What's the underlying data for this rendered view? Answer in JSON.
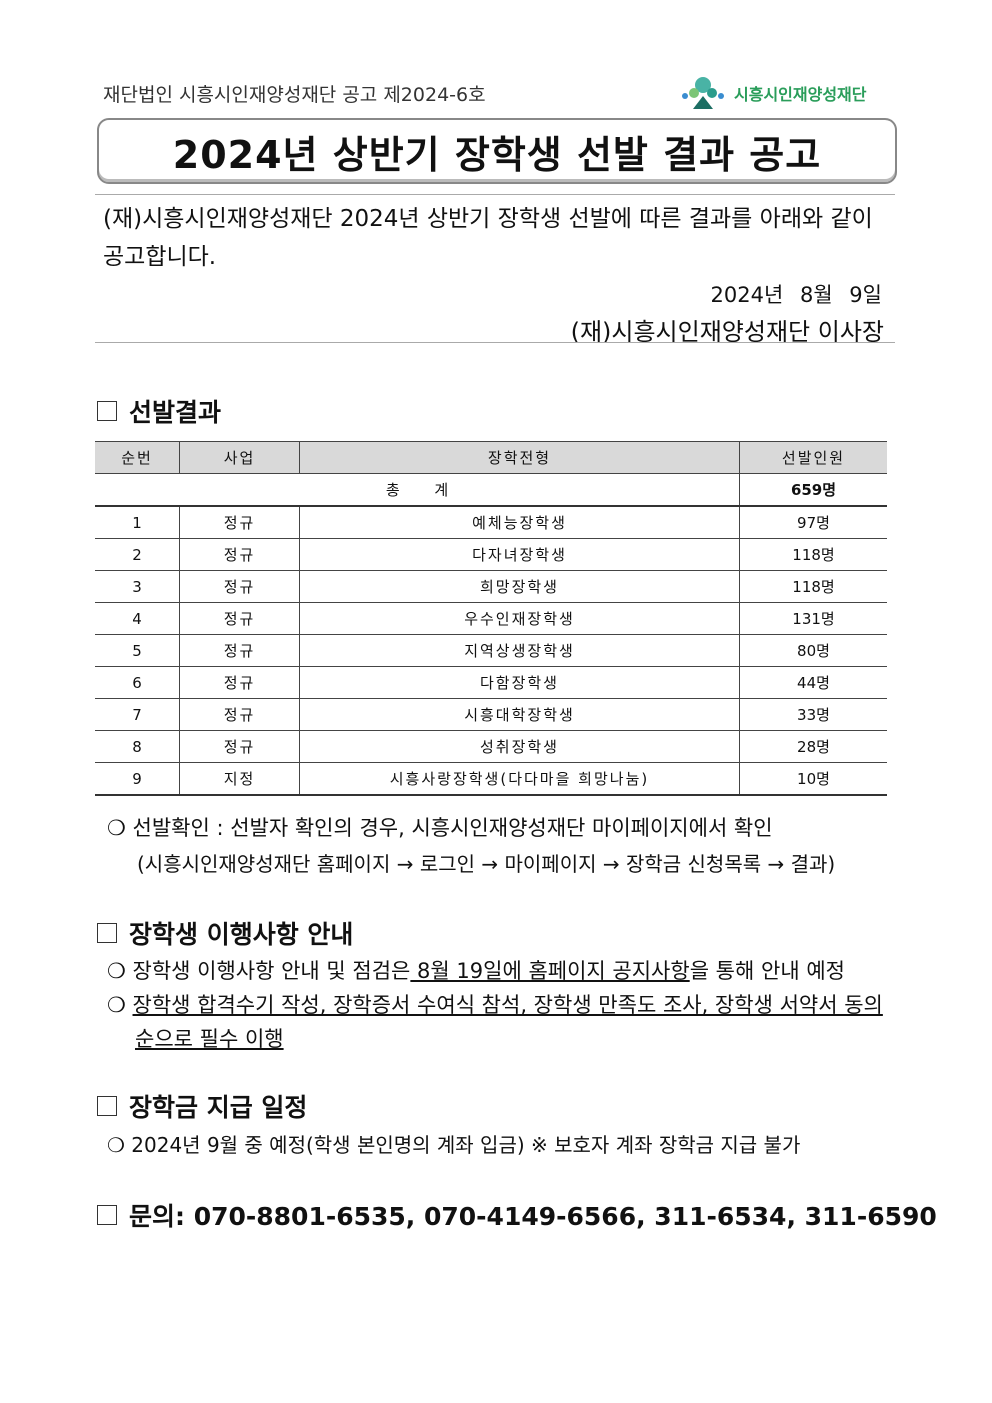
{
  "header": {
    "notice_no": "재단법인 시흥시인재양성재단 공고 제2024-6호",
    "logo_text": "시흥시인재양성재단",
    "title": "2024년 상반기 장학생 선발 결과 공고"
  },
  "intro": {
    "text": "(재)시흥시인재양성재단 2024년 상반기 장학생 선발에 따른 결과를 아래와 같이 공고합니다.",
    "date": "2024년 8월 9일",
    "signer": "(재)시흥시인재양성재단 이사장"
  },
  "section1": {
    "heading": "선발결과",
    "table": {
      "headers": [
        "순번",
        "사업",
        "장학전형",
        "선발인원"
      ],
      "total_label": "총 계",
      "total": "659명",
      "rows": [
        [
          "1",
          "정규",
          "예체능장학생",
          "97명"
        ],
        [
          "2",
          "정규",
          "다자녀장학생",
          "118명"
        ],
        [
          "3",
          "정규",
          "희망장학생",
          "118명"
        ],
        [
          "4",
          "정규",
          "우수인재장학생",
          "131명"
        ],
        [
          "5",
          "정규",
          "지역상생장학생",
          "80명"
        ],
        [
          "6",
          "정규",
          "다함장학생",
          "44명"
        ],
        [
          "7",
          "정규",
          "시흥대학장학생",
          "33명"
        ],
        [
          "8",
          "정규",
          "성취장학생",
          "28명"
        ],
        [
          "9",
          "지정",
          "시흥사랑장학생(다다마을 희망나눔)",
          "10명"
        ]
      ]
    },
    "note1": "❍ 선발확인 : 선발자 확인의 경우, 시흥시인재양성재단 마이페이지에서 확인",
    "note2": "(시흥시인재양성재단 홈페이지 → 로그인 → 마이페이지 → 장학금 신청목록 → 결과)"
  },
  "section2": {
    "heading": "장학생 이행사항 안내",
    "item1_a": "❍ 장학생 이행사항 안내 및 점검은",
    "item1_b": " 8월 19일에 홈페이지 공지사항",
    "item1_c": "을 통해 안내 예정",
    "item2_a": "장학생 합격수기 작성, 장학증서 수여식 참석, 장학생 만족도 조사, 장학생 서약서 동의",
    "item2_b": "순으로 필수 이행"
  },
  "section3": {
    "heading": "장학금 지급 일정",
    "item": "❍ 2024년 9월 중 예정(학생 본인명의 계좌 입금)  ※ 보호자 계좌 장학금 지급 불가"
  },
  "section4": {
    "heading": "문의: 070-8801-6535, 070-4149-6566, 311-6534, 311-6590"
  }
}
